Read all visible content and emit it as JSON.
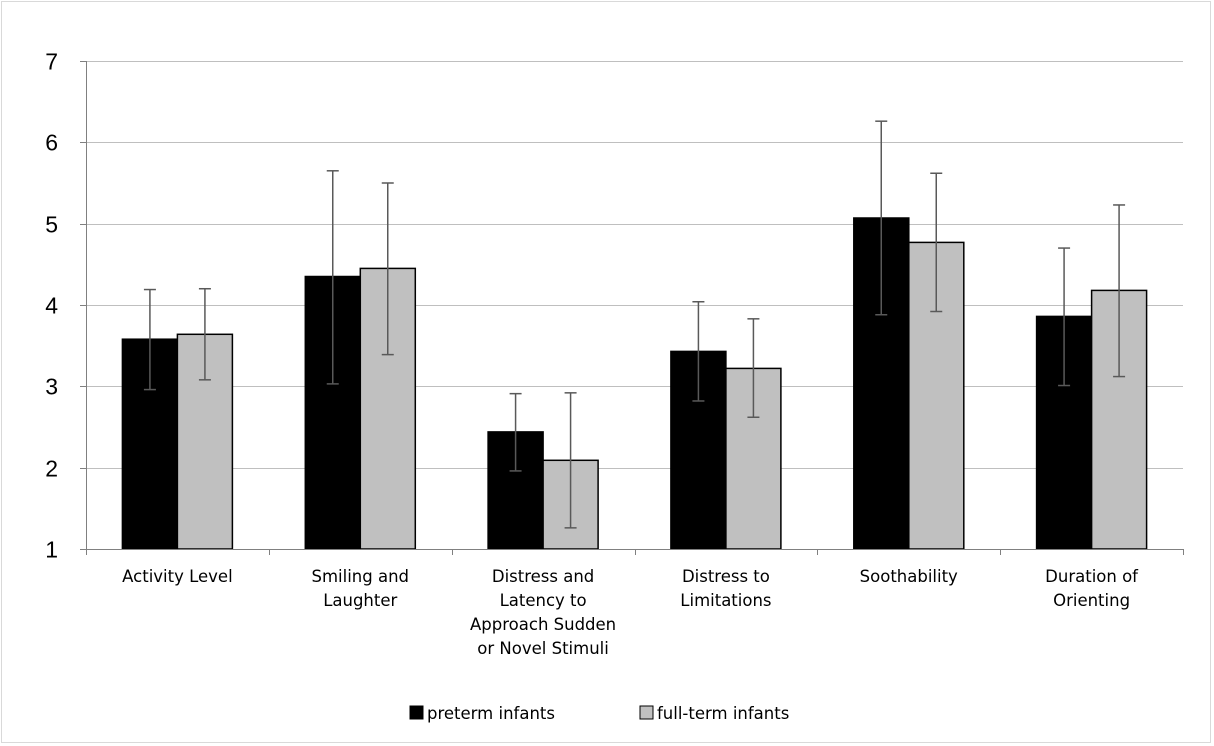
{
  "chart_data": {
    "type": "bar",
    "title": "",
    "xlabel": "",
    "ylabel": "",
    "ylim": [
      1,
      7
    ],
    "yticks": [
      1,
      2,
      3,
      4,
      5,
      6,
      7
    ],
    "grid": true,
    "legend_position": "bottom",
    "categories": [
      [
        "Activity Level"
      ],
      [
        "Smiling and",
        "Laughter"
      ],
      [
        "Distress and",
        "Latency to",
        "Approach Sudden",
        "or Novel Stimuli"
      ],
      [
        "Distress to",
        "Limitations"
      ],
      [
        "Soothability"
      ],
      [
        "Duration of",
        "Orienting"
      ]
    ],
    "series": [
      {
        "name": "preterm infants",
        "color": "#000000",
        "values": [
          3.58,
          4.35,
          2.44,
          3.43,
          5.07,
          3.86
        ],
        "error_low": [
          2.96,
          3.03,
          1.96,
          2.82,
          3.88,
          3.01
        ],
        "error_high": [
          4.19,
          5.65,
          2.91,
          4.04,
          6.26,
          4.7
        ]
      },
      {
        "name": "full-term infants",
        "color": "#c0c0c0",
        "values": [
          3.64,
          4.45,
          2.09,
          3.22,
          4.77,
          4.18
        ],
        "error_low": [
          3.08,
          3.39,
          1.26,
          2.62,
          3.92,
          3.12
        ],
        "error_high": [
          4.2,
          5.5,
          2.92,
          3.83,
          5.62,
          5.23
        ]
      }
    ]
  }
}
